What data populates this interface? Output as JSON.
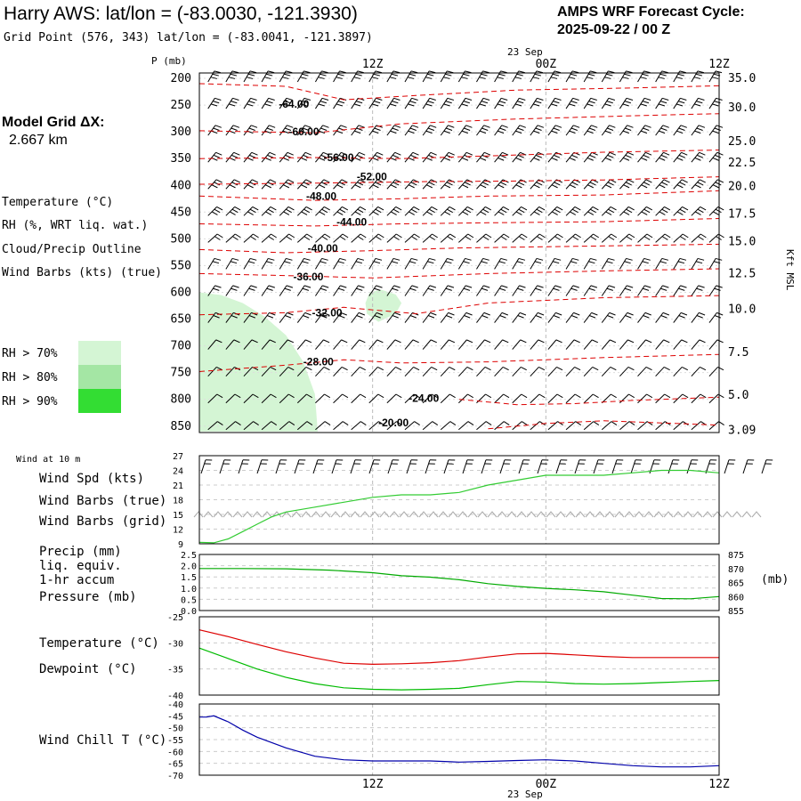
{
  "header": {
    "title": "Harry AWS:  lat/lon = (-83.0030, -121.3930)",
    "subtitle": "Grid Point (576, 343) lat/lon = (-83.0041, -121.3897)",
    "cycle_label": "AMPS WRF Forecast Cycle:",
    "cycle_value": "2025-09-22 / 00  Z",
    "model_grid_label": "Model Grid ΔX:",
    "model_grid_value": "2.667 km"
  },
  "colors": {
    "temperature": "#dd0000",
    "rh_line": "#22bb22",
    "cloud": "#8833aa",
    "barbs": "#000000",
    "barbs_grid": "#aaaaaa",
    "rh70": "#d4f5d4",
    "rh80": "#a4e6a4",
    "rh90": "#33dd33",
    "dewpoint": "#00bb00",
    "windchill": "#0000aa",
    "pressure": "#00aa00",
    "wind_speed": "#33cc33",
    "grid_line": "#bbbbbb"
  },
  "time_axis": {
    "top_date_label": "23 Sep",
    "bottom_date_label": "23 Sep",
    "ticks": [
      "12Z",
      "00Z",
      "12Z"
    ],
    "tick_hours": [
      12,
      24,
      36
    ],
    "hour_range": [
      0,
      36
    ]
  },
  "legend": {
    "temperature": "Temperature (°C)",
    "rh": "RH (%, WRT liq. wat.)",
    "cloud": "Cloud/Precip Outline",
    "wind_barbs": "Wind Barbs (kts) (true)",
    "rh_bins": [
      "RH > 70%",
      "RH > 80%",
      "RH > 90%"
    ]
  },
  "chart_data": [
    {
      "type": "heatmap",
      "name": "profile",
      "ylabel": "P (mb)",
      "y2label": "Kft MSL",
      "pressure_levels": [
        200,
        250,
        300,
        350,
        400,
        450,
        500,
        550,
        600,
        650,
        700,
        750,
        800,
        850
      ],
      "kft_labels": [
        {
          "p": 200,
          "label": "35.0"
        },
        {
          "p": 255,
          "label": "30.0"
        },
        {
          "p": 318,
          "label": "25.0"
        },
        {
          "p": 358,
          "label": "22.5"
        },
        {
          "p": 402,
          "label": "20.0"
        },
        {
          "p": 454,
          "label": "17.5"
        },
        {
          "p": 505,
          "label": "15.0"
        },
        {
          "p": 565,
          "label": "12.5"
        },
        {
          "p": 632,
          "label": "10.0"
        },
        {
          "p": 712,
          "label": "7.5"
        },
        {
          "p": 792,
          "label": "5.0"
        },
        {
          "p": 858,
          "label": "3.09"
        }
      ],
      "temperature_contours": [
        {
          "label": "-64.00",
          "pts": [
            [
              0,
              210
            ],
            [
              6,
              215
            ],
            [
              10,
              240
            ],
            [
              15,
              232
            ],
            [
              22,
              222
            ],
            [
              30,
              218
            ],
            [
              36,
              214
            ]
          ],
          "lab": [
            5.5,
            248
          ]
        },
        {
          "label": "-60.00",
          "pts": [
            [
              0,
              298
            ],
            [
              4,
              300
            ],
            [
              8,
              302
            ],
            [
              14,
              285
            ],
            [
              22,
              276
            ],
            [
              30,
              270
            ],
            [
              36,
              266
            ]
          ],
          "lab": [
            6.2,
            300
          ]
        },
        {
          "label": "-56.00",
          "pts": [
            [
              0,
              350
            ],
            [
              8,
              348
            ],
            [
              14,
              350
            ],
            [
              20,
              345
            ],
            [
              28,
              338
            ],
            [
              36,
              334
            ]
          ],
          "lab": [
            8.6,
            348
          ]
        },
        {
          "label": "-52.00",
          "pts": [
            [
              0,
              398
            ],
            [
              8,
              396
            ],
            [
              16,
              393
            ],
            [
              22,
              392
            ],
            [
              28,
              390
            ],
            [
              36,
              384
            ]
          ],
          "lab": [
            10.9,
            384
          ]
        },
        {
          "label": "-48.00",
          "pts": [
            [
              0,
              420
            ],
            [
              8,
              428
            ],
            [
              14,
              425
            ],
            [
              20,
              420
            ],
            [
              28,
              418
            ],
            [
              36,
              410
            ]
          ],
          "lab": [
            7.4,
            420
          ]
        },
        {
          "label": "-44.00",
          "pts": [
            [
              0,
              472
            ],
            [
              8,
              476
            ],
            [
              14,
              472
            ],
            [
              20,
              470
            ],
            [
              28,
              468
            ],
            [
              36,
              462
            ]
          ],
          "lab": [
            9.5,
            469
          ]
        },
        {
          "label": "-40.00",
          "pts": [
            [
              0,
              520
            ],
            [
              6,
              526
            ],
            [
              12,
              522
            ],
            [
              18,
              517
            ],
            [
              26,
              514
            ],
            [
              36,
              510
            ]
          ],
          "lab": [
            7.5,
            518
          ]
        },
        {
          "label": "-36.00",
          "pts": [
            [
              0,
              565
            ],
            [
              5,
              568
            ],
            [
              8,
              570
            ],
            [
              12,
              573
            ],
            [
              20,
              565
            ],
            [
              28,
              560
            ],
            [
              36,
              556
            ]
          ],
          "lab": [
            6.5,
            571
          ]
        },
        {
          "label": "-32.00",
          "pts": [
            [
              0,
              642
            ],
            [
              6,
              638
            ],
            [
              10,
              628
            ],
            [
              15,
              640
            ],
            [
              20,
              620
            ],
            [
              28,
              610
            ],
            [
              36,
              606
            ]
          ],
          "lab": [
            7.8,
            638
          ]
        },
        {
          "label": "-28.00",
          "pts": [
            [
              0,
              748
            ],
            [
              6,
              736
            ],
            [
              10,
              726
            ],
            [
              14,
              732
            ],
            [
              20,
              730
            ],
            [
              28,
              722
            ],
            [
              36,
              716
            ]
          ],
          "lab": [
            7.2,
            730
          ]
        },
        {
          "label": "-24.00",
          "pts": [
            [
              18,
              800
            ],
            [
              22,
              810
            ],
            [
              26,
              808
            ],
            [
              30,
              802
            ],
            [
              36,
              796
            ]
          ],
          "lab": [
            14.5,
            798
          ]
        },
        {
          "label": "-20.00",
          "pts": [
            [
              20,
              855
            ],
            [
              24,
              845
            ],
            [
              28,
              840
            ],
            [
              32,
              844
            ],
            [
              36,
              848
            ]
          ],
          "lab": [
            12.4,
            844
          ]
        }
      ],
      "rh_regions": [
        {
          "bin": "rh70",
          "shape": [
            [
              0,
              600
            ],
            [
              1.5,
              605
            ],
            [
              3,
              620
            ],
            [
              4.5,
              645
            ],
            [
              6,
              680
            ],
            [
              7.2,
              730
            ],
            [
              8,
              790
            ],
            [
              8.2,
              860
            ],
            [
              0,
              860
            ]
          ]
        },
        {
          "bin": "rh70",
          "shape": [
            [
              11.8,
              600
            ],
            [
              12.6,
              595
            ],
            [
              13.6,
              604
            ],
            [
              14,
              620
            ],
            [
              13.6,
              640
            ],
            [
              12.4,
              655
            ],
            [
              11.6,
              640
            ],
            [
              11.5,
              620
            ]
          ]
        }
      ]
    },
    {
      "type": "line",
      "name": "wind_10m",
      "title": "Wind at 10 m",
      "ylim": [
        9,
        27
      ],
      "yticks": [
        9,
        12,
        15,
        18,
        21,
        24,
        27
      ],
      "labels": {
        "wind_spd": "Wind Spd (kts)",
        "barbs_true": "Wind Barbs (true)",
        "barbs_grid": "Wind Barbs (grid)"
      },
      "series": [
        {
          "name": "Wind Spd (kts)",
          "x": [
            0,
            1,
            2,
            3,
            4,
            5,
            6,
            8,
            10,
            12,
            14,
            16,
            18,
            20,
            22,
            24,
            26,
            28,
            30,
            32,
            34,
            36
          ],
          "y": [
            9.3,
            9.2,
            10,
            11.5,
            13,
            14.5,
            15.5,
            16.5,
            17.5,
            18.5,
            19,
            19,
            19.5,
            21,
            22,
            23,
            23,
            23,
            23.5,
            24,
            24,
            23.5
          ]
        }
      ],
      "barb_speed_true": 25,
      "barb_speed_grid": 15
    },
    {
      "type": "line",
      "name": "precip_pressure",
      "labels": {
        "precip": "Precip (mm)",
        "liq": "liq. equiv.",
        "accum": "1-hr accum",
        "pressure": "Pressure (mb)"
      },
      "ylim": [
        0.0,
        2.5
      ],
      "yticks": [
        "0.0",
        "0.5",
        "1.0",
        "1.5",
        "2.0",
        "2.5"
      ],
      "y2lim": [
        855,
        875
      ],
      "y2ticks": [
        855,
        860,
        865,
        870,
        875
      ],
      "y2label": "(mb)",
      "series": [
        {
          "name": "Pressure (mb)",
          "x": [
            0,
            3,
            6,
            9,
            12,
            14,
            16,
            18,
            20,
            22,
            24,
            26,
            28,
            30,
            32,
            34,
            36
          ],
          "y": [
            870.0,
            870.0,
            869.9,
            869.4,
            868.5,
            867.4,
            866.9,
            866.0,
            864.6,
            863.6,
            862.9,
            862.4,
            861.7,
            860.5,
            859.3,
            859.2,
            860.0
          ]
        }
      ]
    },
    {
      "type": "line",
      "name": "temp_dewpoint",
      "labels": {
        "temperature": "Temperature (°C)",
        "dewpoint": "Dewpoint (°C)"
      },
      "ylim": [
        -40,
        -25
      ],
      "yticks": [
        -25,
        -30,
        -35,
        -40
      ],
      "series": [
        {
          "name": "Temperature (°C)",
          "x": [
            0,
            2,
            4,
            6,
            8,
            10,
            12,
            14,
            16,
            18,
            20,
            22,
            24,
            26,
            28,
            30,
            32,
            34,
            36
          ],
          "y": [
            -27.5,
            -28.8,
            -30.3,
            -31.7,
            -32.9,
            -33.9,
            -34.1,
            -34.0,
            -33.8,
            -33.4,
            -32.7,
            -32.1,
            -32.0,
            -32.3,
            -32.6,
            -32.8,
            -32.8,
            -32.8,
            -32.8
          ]
        },
        {
          "name": "Dewpoint (°C)",
          "x": [
            0,
            2,
            4,
            6,
            8,
            10,
            12,
            14,
            16,
            18,
            20,
            22,
            24,
            26,
            28,
            30,
            32,
            34,
            36
          ],
          "y": [
            -31.0,
            -33.0,
            -35.0,
            -36.6,
            -37.8,
            -38.6,
            -38.9,
            -39.0,
            -38.9,
            -38.7,
            -38.0,
            -37.4,
            -37.5,
            -37.8,
            -37.9,
            -37.8,
            -37.6,
            -37.4,
            -37.2
          ]
        }
      ]
    },
    {
      "type": "line",
      "name": "windchill",
      "labels": {
        "windchill": "Wind Chill T (°C)"
      },
      "ylim": [
        -70,
        -40
      ],
      "yticks": [
        -40,
        -45,
        -50,
        -55,
        -60,
        -65,
        -70
      ],
      "series": [
        {
          "name": "Wind Chill T (°C)",
          "x": [
            0,
            0.5,
            1,
            2,
            3,
            4,
            6,
            8,
            10,
            12,
            14,
            16,
            18,
            20,
            22,
            24,
            26,
            28,
            30,
            32,
            34,
            36
          ],
          "y": [
            -45.5,
            -45.5,
            -45.0,
            -47.5,
            -51,
            -54,
            -58.5,
            -62,
            -63.5,
            -64,
            -64,
            -64,
            -64.5,
            -64.2,
            -63.8,
            -63.5,
            -64,
            -65,
            -66,
            -66.5,
            -66.5,
            -66
          ]
        }
      ]
    }
  ]
}
